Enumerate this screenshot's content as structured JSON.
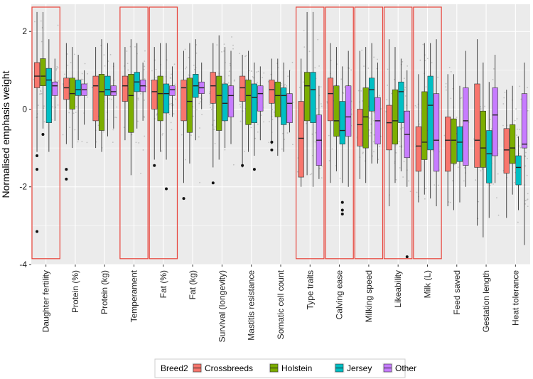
{
  "chart_data": {
    "type": "box",
    "title": "",
    "xlabel": "",
    "ylabel": "Normalised emphasis weight",
    "ylim": [
      -4,
      2.7
    ],
    "yticks": [
      -4,
      -2,
      0,
      2
    ],
    "ytick_labels": [
      "-4",
      "-2",
      "0",
      "2"
    ],
    "grid": true,
    "legend": {
      "title": "Breed2",
      "placement": "bottom",
      "entries": [
        "Crossbreeds",
        "Holstein",
        "Jersey",
        "Other"
      ]
    },
    "series_colors": [
      "#F8766D",
      "#7CAE00",
      "#00BFC4",
      "#C77CFF"
    ],
    "highlight_color": "#E8433A",
    "highlighted_traits": [
      "Daughter fertility",
      "Temperament",
      "Fat (%)",
      "Type traits",
      "Calving ease",
      "Milking speed",
      "Likeability",
      "Milk (L)"
    ],
    "categories": [
      "Daughter fertility",
      "Protein (%)",
      "Protein (kg)",
      "Temperament",
      "Fat (%)",
      "Fat (kg)",
      "Survival (longevity)",
      "Mastitis resistance",
      "Somatic cell count",
      "Type traits",
      "Calving ease",
      "Milking speed",
      "Likeability",
      "Milk (L)",
      "Feed saved",
      "Gestation length",
      "Heat tolerance"
    ],
    "series": [
      {
        "name": "Crossbreeds",
        "boxes": [
          {
            "min": -1.1,
            "q1": 0.55,
            "median": 0.85,
            "q3": 1.2,
            "max": 2.5,
            "outliers": [
              -1.2,
              -1.55,
              -3.15
            ]
          },
          {
            "min": -0.9,
            "q1": 0.25,
            "median": 0.55,
            "q3": 0.8,
            "max": 1.7,
            "outliers": [
              -1.55,
              -1.8
            ]
          },
          {
            "min": -1.0,
            "q1": -0.3,
            "median": 0.6,
            "q3": 0.85,
            "max": 1.6,
            "outliers": []
          },
          {
            "min": -0.8,
            "q1": 0.2,
            "median": 0.6,
            "q3": 0.85,
            "max": 1.6,
            "outliers": []
          },
          {
            "min": -1.3,
            "q1": 0.0,
            "median": 0.45,
            "q3": 0.75,
            "max": 1.6,
            "outliers": [
              -1.45
            ]
          },
          {
            "min": -1.9,
            "q1": -0.3,
            "median": 0.55,
            "q3": 0.75,
            "max": 1.5,
            "outliers": [
              -2.3
            ]
          },
          {
            "min": -1.5,
            "q1": 0.15,
            "median": 0.6,
            "q3": 0.95,
            "max": 1.7,
            "outliers": [
              -1.9
            ]
          },
          {
            "min": -1.5,
            "q1": 0.2,
            "median": 0.55,
            "q3": 0.85,
            "max": 1.4,
            "outliers": [
              -1.45
            ]
          },
          {
            "min": -0.9,
            "q1": 0.15,
            "median": 0.5,
            "q3": 0.75,
            "max": 1.3,
            "outliers": [
              -0.85,
              -1.05
            ]
          },
          {
            "min": -2.0,
            "q1": -1.75,
            "median": -0.75,
            "q3": 0.2,
            "max": 1.3,
            "outliers": []
          },
          {
            "min": -1.9,
            "q1": -0.3,
            "median": 0.4,
            "q3": 0.8,
            "max": 1.7,
            "outliers": []
          },
          {
            "min": -1.8,
            "q1": -0.95,
            "median": -0.4,
            "q3": 0.0,
            "max": 1.5,
            "outliers": []
          },
          {
            "min": -2.5,
            "q1": -1.05,
            "median": -0.35,
            "q3": 0.1,
            "max": 1.8,
            "outliers": []
          },
          {
            "min": -2.4,
            "q1": -1.6,
            "median": -0.95,
            "q3": -0.45,
            "max": 0.9,
            "outliers": []
          },
          {
            "min": -2.5,
            "q1": -1.6,
            "median": -0.8,
            "q3": -0.2,
            "max": 0.9,
            "outliers": []
          },
          {
            "min": -3.0,
            "q1": -1.5,
            "median": -0.8,
            "q3": 0.65,
            "max": 1.8,
            "outliers": []
          },
          {
            "min": -2.8,
            "q1": -1.65,
            "median": -1.05,
            "q3": -0.5,
            "max": 0.5,
            "outliers": []
          }
        ]
      },
      {
        "name": "Holstein",
        "boxes": [
          {
            "min": -0.5,
            "q1": 0.6,
            "median": 0.85,
            "q3": 1.3,
            "max": 2.5,
            "outliers": [
              -0.65
            ]
          },
          {
            "min": -1.0,
            "q1": 0.0,
            "median": 0.4,
            "q3": 0.8,
            "max": 1.6,
            "outliers": []
          },
          {
            "min": -1.1,
            "q1": -0.55,
            "median": 0.45,
            "q3": 0.9,
            "max": 1.8,
            "outliers": []
          },
          {
            "min": -1.7,
            "q1": -0.6,
            "median": 0.35,
            "q3": 0.9,
            "max": 1.8,
            "outliers": []
          },
          {
            "min": -1.1,
            "q1": -0.3,
            "median": 0.4,
            "q3": 0.85,
            "max": 1.7,
            "outliers": []
          },
          {
            "min": -1.4,
            "q1": -0.6,
            "median": 0.2,
            "q3": 0.8,
            "max": 1.7,
            "outliers": []
          },
          {
            "min": -1.3,
            "q1": -0.55,
            "median": 0.35,
            "q3": 0.85,
            "max": 1.9,
            "outliers": []
          },
          {
            "min": -1.1,
            "q1": -0.4,
            "median": 0.35,
            "q3": 0.75,
            "max": 1.5,
            "outliers": []
          },
          {
            "min": -1.2,
            "q1": -0.2,
            "median": 0.35,
            "q3": 0.7,
            "max": 1.3,
            "outliers": []
          },
          {
            "min": -1.7,
            "q1": -0.3,
            "median": 0.6,
            "q3": 0.95,
            "max": 2.5,
            "outliers": []
          },
          {
            "min": -1.6,
            "q1": -0.7,
            "median": -0.3,
            "q3": 0.6,
            "max": 1.6,
            "outliers": []
          },
          {
            "min": -1.9,
            "q1": -1.0,
            "median": -0.2,
            "q3": 0.55,
            "max": 1.6,
            "outliers": []
          },
          {
            "min": -1.9,
            "q1": -0.9,
            "median": -0.3,
            "q3": 0.5,
            "max": 1.6,
            "outliers": []
          },
          {
            "min": -2.2,
            "q1": -1.3,
            "median": -0.85,
            "q3": 0.45,
            "max": 1.7,
            "outliers": []
          },
          {
            "min": -2.6,
            "q1": -1.4,
            "median": -0.8,
            "q3": -0.25,
            "max": 0.9,
            "outliers": []
          },
          {
            "min": -3.3,
            "q1": -1.5,
            "median": -1.0,
            "q3": -0.05,
            "max": 1.2,
            "outliers": []
          },
          {
            "min": -2.2,
            "q1": -1.4,
            "median": -1.0,
            "q3": -0.4,
            "max": 0.6,
            "outliers": []
          }
        ]
      },
      {
        "name": "Jersey",
        "boxes": [
          {
            "min": -1.1,
            "q1": -0.35,
            "median": 0.75,
            "q3": 1.05,
            "max": 1.8,
            "outliers": []
          },
          {
            "min": -0.8,
            "q1": 0.35,
            "median": 0.5,
            "q3": 0.75,
            "max": 1.4,
            "outliers": []
          },
          {
            "min": -0.7,
            "q1": 0.35,
            "median": 0.5,
            "q3": 0.85,
            "max": 1.7,
            "outliers": []
          },
          {
            "min": -0.5,
            "q1": 0.45,
            "median": 0.7,
            "q3": 0.95,
            "max": 1.7,
            "outliers": []
          },
          {
            "min": -1.3,
            "q1": -0.1,
            "median": 0.4,
            "q3": 0.65,
            "max": 1.7,
            "outliers": [
              -2.05
            ]
          },
          {
            "min": -0.8,
            "q1": 0.3,
            "median": 0.6,
            "q3": 0.9,
            "max": 1.8,
            "outliers": []
          },
          {
            "min": -1.0,
            "q1": -0.3,
            "median": 0.15,
            "q3": 0.65,
            "max": 1.6,
            "outliers": []
          },
          {
            "min": -1.2,
            "q1": -0.35,
            "median": 0.3,
            "q3": 0.65,
            "max": 1.2,
            "outliers": [
              -1.55
            ]
          },
          {
            "min": -1.1,
            "q1": -0.4,
            "median": 0.35,
            "q3": 0.55,
            "max": 1.2,
            "outliers": []
          },
          {
            "min": -2.0,
            "q1": -0.35,
            "median": 0.5,
            "q3": 0.95,
            "max": 2.5,
            "outliers": []
          },
          {
            "min": -1.9,
            "q1": -0.9,
            "median": -0.55,
            "q3": 0.2,
            "max": 1.1,
            "outliers": [
              -2.4,
              -2.6,
              -2.7
            ]
          },
          {
            "min": -1.4,
            "q1": -0.05,
            "median": 0.5,
            "q3": 0.8,
            "max": 1.7,
            "outliers": []
          },
          {
            "min": -1.6,
            "q1": -0.35,
            "median": 0.45,
            "q3": 0.7,
            "max": 1.3,
            "outliers": []
          },
          {
            "min": -2.3,
            "q1": -1.05,
            "median": 0.1,
            "q3": 0.85,
            "max": 1.7,
            "outliers": []
          },
          {
            "min": -2.4,
            "q1": -1.35,
            "median": -0.85,
            "q3": -0.45,
            "max": 0.6,
            "outliers": []
          },
          {
            "min": -2.8,
            "q1": -1.9,
            "median": -1.15,
            "q3": -0.55,
            "max": 0.7,
            "outliers": []
          },
          {
            "min": -2.6,
            "q1": -1.95,
            "median": -1.5,
            "q3": -1.2,
            "max": -0.7,
            "outliers": []
          }
        ]
      },
      {
        "name": "Other",
        "boxes": [
          {
            "min": -0.3,
            "q1": 0.35,
            "median": 0.6,
            "q3": 0.7,
            "max": 1.3,
            "outliers": []
          },
          {
            "min": -0.4,
            "q1": 0.35,
            "median": 0.5,
            "q3": 0.65,
            "max": 1.0,
            "outliers": []
          },
          {
            "min": -0.5,
            "q1": 0.35,
            "median": 0.45,
            "q3": 0.6,
            "max": 1.2,
            "outliers": []
          },
          {
            "min": -0.3,
            "q1": 0.45,
            "median": 0.6,
            "q3": 0.75,
            "max": 1.2,
            "outliers": []
          },
          {
            "min": -0.2,
            "q1": 0.35,
            "median": 0.5,
            "q3": 0.6,
            "max": 1.1,
            "outliers": []
          },
          {
            "min": 0.0,
            "q1": 0.4,
            "median": 0.55,
            "q3": 0.7,
            "max": 1.2,
            "outliers": []
          },
          {
            "min": -0.9,
            "q1": -0.2,
            "median": 0.35,
            "q3": 0.6,
            "max": 1.5,
            "outliers": []
          },
          {
            "min": -0.8,
            "q1": -0.05,
            "median": 0.4,
            "q3": 0.6,
            "max": 1.1,
            "outliers": []
          },
          {
            "min": -0.6,
            "q1": -0.35,
            "median": 0.15,
            "q3": 0.4,
            "max": 1.0,
            "outliers": []
          },
          {
            "min": -1.8,
            "q1": -1.45,
            "median": -0.8,
            "q3": -0.15,
            "max": 0.6,
            "outliers": []
          },
          {
            "min": -2.0,
            "q1": -0.7,
            "median": -0.2,
            "q3": 0.6,
            "max": 1.5,
            "outliers": []
          },
          {
            "min": -1.4,
            "q1": -0.9,
            "median": -0.3,
            "q3": 0.3,
            "max": 1.2,
            "outliers": []
          },
          {
            "min": -2.0,
            "q1": -1.25,
            "median": -0.65,
            "q3": -0.05,
            "max": 1.0,
            "outliers": [
              -3.8
            ]
          },
          {
            "min": -2.5,
            "q1": -1.6,
            "median": -0.8,
            "q3": 0.4,
            "max": 1.8,
            "outliers": []
          },
          {
            "min": -2.0,
            "q1": -1.45,
            "median": -0.3,
            "q3": 0.55,
            "max": 1.5,
            "outliers": []
          },
          {
            "min": -1.9,
            "q1": -1.2,
            "median": -0.15,
            "q3": 0.55,
            "max": 1.4,
            "outliers": []
          },
          {
            "min": -3.5,
            "q1": -1.0,
            "median": -0.9,
            "q3": 0.4,
            "max": 1.2,
            "outliers": []
          }
        ]
      }
    ]
  }
}
